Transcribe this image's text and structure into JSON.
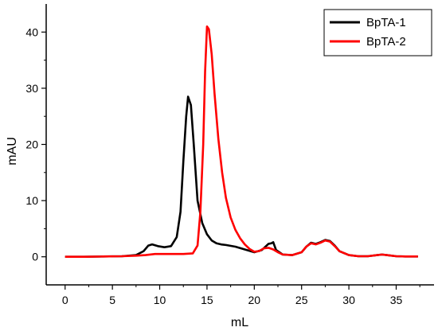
{
  "chart_data": {
    "type": "line",
    "title": "",
    "xlabel": "mL",
    "ylabel": "mAU",
    "xlim": [
      -2,
      39
    ],
    "ylim": [
      -5,
      45
    ],
    "xticks": [
      0,
      5,
      10,
      15,
      20,
      25,
      30,
      35
    ],
    "yticks": [
      0,
      10,
      20,
      30,
      40
    ],
    "grid": false,
    "legend_position": "top-right",
    "series": [
      {
        "name": "BpTA-1",
        "color": "#000000",
        "x": [
          0,
          2,
          4,
          6,
          7.5,
          8.3,
          8.8,
          9.2,
          9.8,
          10.5,
          11.2,
          11.8,
          12.2,
          12.5,
          12.8,
          13.0,
          13.3,
          13.6,
          14.0,
          14.5,
          15.0,
          15.5,
          16.0,
          16.5,
          17.0,
          18.0,
          19.0,
          20.0,
          20.8,
          21.5,
          21.8,
          22.0,
          22.3,
          23.0,
          24.0,
          25.0,
          25.5,
          26.0,
          26.5,
          27.0,
          27.5,
          28.0,
          28.5,
          29.0,
          30.0,
          31.0,
          32.0,
          33.0,
          33.5,
          34.0,
          35.0,
          36.0,
          37.3
        ],
        "y": [
          0,
          0,
          0.05,
          0.1,
          0.3,
          1.0,
          2.0,
          2.2,
          1.9,
          1.7,
          1.9,
          3.5,
          8.0,
          17.0,
          25.0,
          28.5,
          27.0,
          20.0,
          10.0,
          6.0,
          4.0,
          2.9,
          2.4,
          2.2,
          2.1,
          1.8,
          1.3,
          0.8,
          1.2,
          2.3,
          2.4,
          2.6,
          1.2,
          0.4,
          0.3,
          0.8,
          1.8,
          2.5,
          2.3,
          2.6,
          3.0,
          2.8,
          2.0,
          1.0,
          0.3,
          0.1,
          0.1,
          0.3,
          0.4,
          0.3,
          0.1,
          0.05,
          0.05
        ]
      },
      {
        "name": "BpTA-2",
        "color": "#ff0000",
        "x": [
          0,
          2,
          4,
          6,
          7.5,
          8.5,
          9.5,
          10.5,
          11.5,
          12.5,
          13.5,
          14.0,
          14.3,
          14.6,
          14.8,
          15.0,
          15.2,
          15.5,
          15.8,
          16.2,
          16.6,
          17.0,
          17.5,
          18.0,
          18.5,
          19.0,
          19.5,
          20.0,
          20.5,
          21.0,
          21.5,
          22.0,
          22.5,
          23.0,
          24.0,
          25.0,
          25.5,
          26.0,
          26.5,
          27.0,
          27.5,
          28.0,
          28.5,
          29.0,
          30.0,
          31.0,
          32.0,
          33.0,
          33.5,
          34.0,
          35.0,
          36.0,
          37.3
        ],
        "y": [
          0,
          0,
          0.05,
          0.1,
          0.2,
          0.3,
          0.5,
          0.5,
          0.5,
          0.5,
          0.6,
          2.0,
          8.0,
          20.0,
          33.0,
          41.0,
          40.5,
          36.0,
          29.0,
          21.0,
          15.0,
          10.5,
          7.0,
          4.8,
          3.3,
          2.2,
          1.4,
          0.9,
          1.0,
          1.5,
          1.6,
          1.3,
          0.8,
          0.4,
          0.3,
          0.8,
          1.8,
          2.4,
          2.2,
          2.5,
          2.9,
          2.7,
          1.9,
          1.0,
          0.3,
          0.1,
          0.1,
          0.3,
          0.4,
          0.3,
          0.1,
          0.05,
          0.05
        ]
      }
    ]
  }
}
